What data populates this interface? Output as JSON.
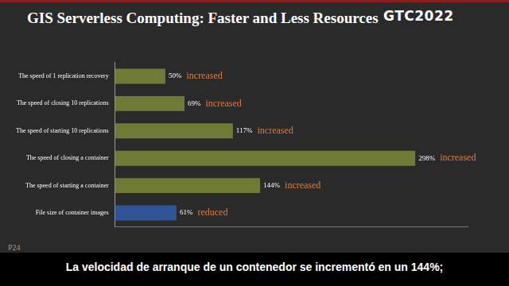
{
  "chart_data": {
    "type": "bar",
    "orientation": "horizontal",
    "title": "GIS Serverless Computing: Faster and Less Resources",
    "categories": [
      "The speed of 1 replication recovery",
      "The speed of closing 10 replications",
      "The speed of starting 10 replications",
      "The speed of closing a container",
      "The speed of starting a container",
      "File size of container images"
    ],
    "values": [
      50,
      69,
      117,
      298,
      144,
      61
    ],
    "value_labels": [
      "50%",
      "69%",
      "117%",
      "298%",
      "144%",
      "61%"
    ],
    "bar_notes": [
      "increased",
      "increased",
      "increased",
      "increased",
      "increased",
      "reduced"
    ],
    "colors": [
      "#6f7a35",
      "#6f7a35",
      "#6f7a35",
      "#6f7a35",
      "#6f7a35",
      "#2e5596"
    ],
    "xlim": [
      0,
      350
    ],
    "xticks": [],
    "grid": false,
    "data_labels": true,
    "tick_labels": "y"
  },
  "annotations": {
    "logo": "GTC2022",
    "page": "P24",
    "caption": "La velocidad de arranque de un contenedor se incrementó en un 144%;"
  }
}
